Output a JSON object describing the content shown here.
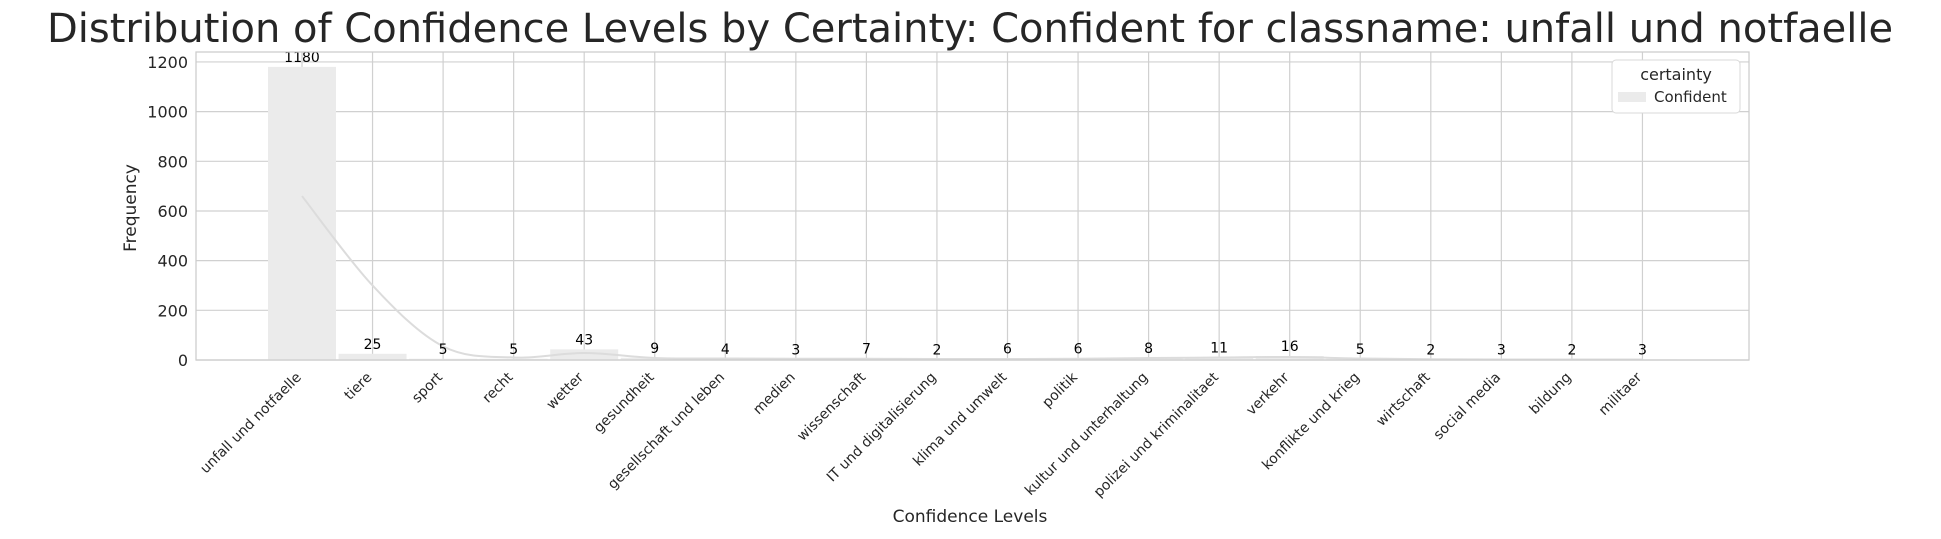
{
  "chart_data": {
    "type": "bar",
    "title": "Distribution of Confidence Levels by Certainty: Confident for classname: unfall und notfaelle",
    "xlabel": "Confidence Levels",
    "ylabel": "Frequency",
    "ylim": [
      0,
      1240
    ],
    "yticks": [
      0,
      200,
      400,
      600,
      800,
      1000,
      1200
    ],
    "grid": true,
    "legend": {
      "title": "certainty",
      "placement": "top-right",
      "entries": [
        {
          "label": "Confident",
          "color": "#ebebeb"
        }
      ]
    },
    "categories": [
      "unfall und notfaelle",
      "tiere",
      "sport",
      "recht",
      "wetter",
      "gesundheit",
      "gesellschaft und leben",
      "medien",
      "wissenschaft",
      "IT und digitalisierung",
      "klima und umwelt",
      "politik",
      "kultur und unterhaltung",
      "polizei und kriminalitaet",
      "verkehr",
      "konflikte und krieg",
      "wirtschaft",
      "social media",
      "bildung",
      "militaer"
    ],
    "series": [
      {
        "name": "Confident",
        "values": [
          1180,
          25,
          5,
          5,
          43,
          9,
          4,
          3,
          7,
          2,
          6,
          6,
          8,
          11,
          16,
          5,
          2,
          3,
          2,
          3
        ]
      }
    ],
    "kde_curve": [
      660,
      300,
      55,
      10,
      28,
      8,
      6,
      5,
      5,
      4,
      4,
      5,
      8,
      10,
      12,
      6,
      3,
      2,
      2,
      2
    ],
    "colors": {
      "bar_fill": "#ebebeb",
      "kde_line": "#dcdcdc",
      "grid": "#d0d0d0",
      "axes_edge": "#cccccc",
      "text": "#262626"
    }
  }
}
